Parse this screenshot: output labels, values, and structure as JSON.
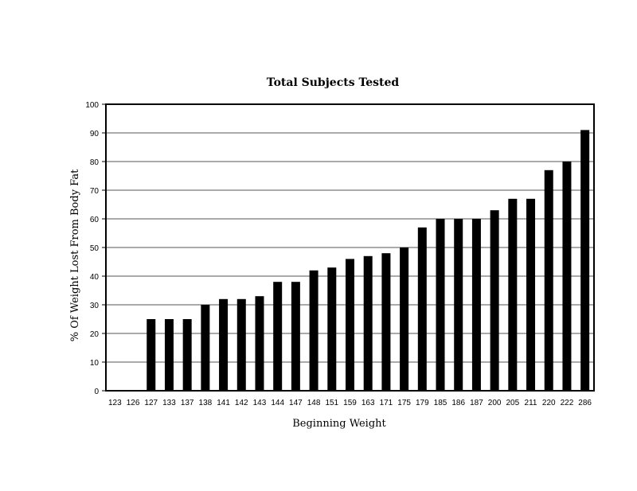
{
  "chart_data": {
    "type": "bar",
    "title": "Total Subjects Tested",
    "xlabel": "Beginning Weight",
    "ylabel": "% Of Weight Lost From Body Fat",
    "ylim": [
      0,
      100
    ],
    "yticks": [
      0,
      10,
      20,
      30,
      40,
      50,
      60,
      70,
      80,
      90,
      100
    ],
    "grid": true,
    "legend": "none",
    "bar_color": "#000000",
    "categories": [
      "123",
      "126",
      "127",
      "133",
      "137",
      "138",
      "141",
      "142",
      "143",
      "144",
      "147",
      "148",
      "151",
      "159",
      "163",
      "171",
      "175",
      "179",
      "185",
      "186",
      "187",
      "200",
      "205",
      "211",
      "220",
      "222",
      "286"
    ],
    "values": [
      0,
      0,
      25,
      25,
      25,
      30,
      32,
      32,
      33,
      38,
      38,
      42,
      43,
      46,
      47,
      48,
      50,
      57,
      60,
      60,
      60,
      63,
      67,
      67,
      77,
      80,
      91
    ]
  }
}
